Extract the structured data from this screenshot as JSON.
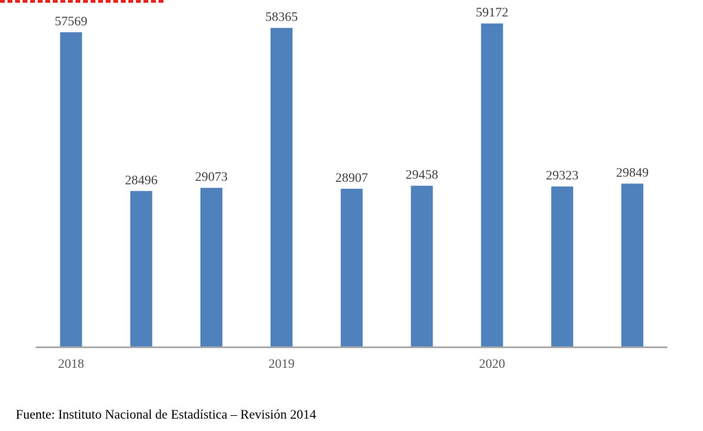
{
  "chart_data": {
    "type": "bar",
    "categories": [
      "2018",
      "",
      "",
      "2019",
      "",
      "",
      "2020",
      "",
      ""
    ],
    "values": [
      57569,
      28496,
      29073,
      58365,
      28907,
      29458,
      59172,
      29323,
      29849
    ],
    "data_labels": [
      "57569",
      "28496",
      "29073",
      "58365",
      "28907",
      "29458",
      "59172",
      "29323",
      "29849"
    ],
    "tick_labels": [
      "2018",
      "2019",
      "2020"
    ],
    "ylim": [
      0,
      60000
    ],
    "grid": false,
    "legend": "none",
    "colors": {
      "bar": "#4f81bd",
      "axis": "#a6a6a6",
      "accent": "#e8241f"
    }
  },
  "footer": {
    "source": "Fuente: Instituto Nacional de Estadística – Revisión 2014"
  }
}
